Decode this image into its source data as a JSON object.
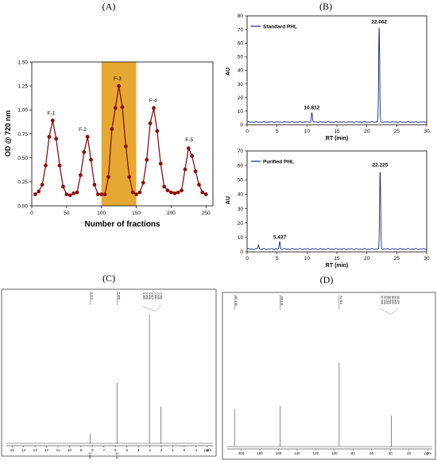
{
  "panels": {
    "A": "(A)",
    "B": "(B)",
    "C": "(C)",
    "D": "(D)"
  },
  "colors": {
    "fraction_curve": "#8b1010",
    "highlight_band": "#e6a833",
    "hplc_line": "#1a237e",
    "nmr_line": "#555555"
  },
  "chart_data": [
    {
      "type": "line",
      "panel": "A",
      "xlabel": "Number of fractions",
      "ylabel": "OD @ 720 nm",
      "xlim": [
        0,
        260
      ],
      "ylim": [
        0,
        1.5
      ],
      "xticks": [
        0,
        50,
        100,
        150,
        200,
        250
      ],
      "yticks": [
        0.0,
        0.25,
        0.5,
        0.75,
        1.0,
        1.25,
        1.5
      ],
      "highlight_range": [
        100,
        150
      ],
      "grid": false,
      "x": [
        5,
        10,
        15,
        20,
        25,
        30,
        35,
        40,
        45,
        50,
        55,
        60,
        65,
        70,
        75,
        80,
        85,
        90,
        95,
        100,
        105,
        110,
        115,
        120,
        125,
        130,
        135,
        140,
        145,
        150,
        155,
        160,
        165,
        170,
        175,
        180,
        185,
        190,
        195,
        200,
        205,
        210,
        215,
        220,
        225,
        230,
        235,
        240,
        245,
        250
      ],
      "values": [
        0.12,
        0.15,
        0.22,
        0.42,
        0.72,
        0.89,
        0.7,
        0.42,
        0.2,
        0.12,
        0.11,
        0.13,
        0.14,
        0.32,
        0.56,
        0.72,
        0.48,
        0.22,
        0.12,
        0.12,
        0.12,
        0.3,
        0.8,
        1.02,
        1.25,
        1.03,
        0.62,
        0.3,
        0.14,
        0.12,
        0.14,
        0.24,
        0.48,
        0.86,
        1.02,
        0.78,
        0.44,
        0.2,
        0.16,
        0.14,
        0.13,
        0.14,
        0.16,
        0.38,
        0.6,
        0.52,
        0.36,
        0.22,
        0.14,
        0.12
      ],
      "annotations": [
        {
          "text": "F-1",
          "x": 28,
          "y": 0.95
        },
        {
          "text": "F-2",
          "x": 73,
          "y": 0.78
        },
        {
          "text": "F-3",
          "x": 123,
          "y": 1.31
        },
        {
          "text": "F-4",
          "x": 174,
          "y": 1.08
        },
        {
          "text": "F-5",
          "x": 226,
          "y": 0.67
        }
      ]
    },
    {
      "type": "line",
      "panel": "B-top",
      "legend": "Standard PHL",
      "legend_position": "top-left",
      "xlabel": "RT (min)",
      "ylabel": "AU",
      "xlim": [
        0,
        30
      ],
      "ylim": [
        0,
        80
      ],
      "xticks": [
        0,
        5,
        10,
        15,
        20,
        25,
        30
      ],
      "yticks": [
        0,
        10,
        20,
        30,
        40,
        50,
        60,
        70,
        80
      ],
      "baseline": 2,
      "peaks": [
        {
          "rt": 10.812,
          "height": 7,
          "label": "10.812"
        },
        {
          "rt": 22.062,
          "height": 70,
          "label": "22.062"
        }
      ]
    },
    {
      "type": "line",
      "panel": "B-bottom",
      "legend": "Purified PHL",
      "legend_position": "top-left",
      "xlabel": "RT (min)",
      "ylabel": "AU",
      "xlim": [
        0,
        30
      ],
      "ylim": [
        0,
        70
      ],
      "xticks": [
        0,
        5,
        10,
        15,
        20,
        25,
        30
      ],
      "yticks": [
        0,
        10,
        20,
        30,
        40,
        50,
        60,
        70
      ],
      "baseline": 2,
      "peaks": [
        {
          "rt": 1.9,
          "height": 3,
          "label": ""
        },
        {
          "rt": 5.437,
          "height": 5,
          "label": "5.437"
        },
        {
          "rt": 22.225,
          "height": 55,
          "label": "22.225"
        }
      ]
    },
    {
      "type": "line",
      "panel": "C",
      "xlabel": "ppm",
      "xlim": [
        15.5,
        -2.5
      ],
      "xticks": [
        15,
        14,
        13,
        12,
        11,
        10,
        9,
        8,
        7,
        6,
        5,
        4,
        3,
        2,
        1,
        0,
        -1,
        -2
      ],
      "peak_labels_left": [
        "8.213"
      ],
      "peak_labels_mid": [
        "5.856"
      ],
      "peak_labels_right": [
        "3.369",
        "3.056",
        "3.035",
        "3.014",
        "2.049",
        "2.045",
        "1.981"
      ],
      "integrals": [
        "1.00",
        "3.18"
      ],
      "peaks": [
        {
          "ppm": 8.213,
          "height": 0.07
        },
        {
          "ppm": 5.856,
          "height": 0.44
        },
        {
          "ppm": 3.369,
          "height": 0.0
        },
        {
          "ppm": 3.03,
          "height": 0.94
        },
        {
          "ppm": 2.05,
          "height": 0.27
        }
      ]
    },
    {
      "type": "line",
      "panel": "D",
      "xlabel": "ppm",
      "xlim": [
        215,
        -5
      ],
      "xticks": [
        200,
        180,
        160,
        140,
        120,
        100,
        80,
        60,
        40,
        20,
        0
      ],
      "peak_labels": [
        "207.138",
        "158.131",
        "94.913"
      ],
      "peak_labels_cluster": [
        "39.546",
        "39.330",
        "39.163",
        "38.998",
        "38.832",
        "38.665",
        "38.499"
      ],
      "peaks": [
        {
          "ppm": 207.138,
          "height": 0.28
        },
        {
          "ppm": 158.131,
          "height": 0.3
        },
        {
          "ppm": 94.913,
          "height": 0.62
        },
        {
          "ppm": 39.0,
          "height": 0.23
        }
      ]
    }
  ]
}
